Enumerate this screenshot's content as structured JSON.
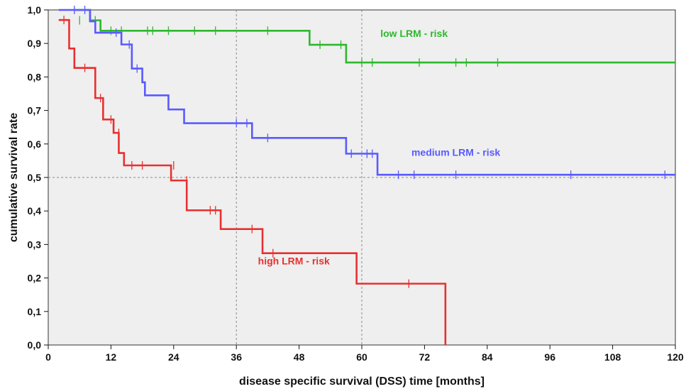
{
  "chart_data": {
    "type": "line",
    "subtype": "kaplan-meier step",
    "xlabel": "disease specific survival (DSS) time [months]",
    "ylabel": "cumulative survival rate",
    "xlim": [
      0,
      120
    ],
    "ylim": [
      0.0,
      1.0
    ],
    "x_ticks": [
      0,
      12,
      24,
      36,
      48,
      60,
      72,
      84,
      96,
      108,
      120
    ],
    "y_ticks": [
      0.0,
      0.1,
      0.2,
      0.3,
      0.4,
      0.5,
      0.6,
      0.7,
      0.8,
      0.9,
      1.0
    ],
    "x_tick_labels": [
      "0",
      "12",
      "24",
      "36",
      "48",
      "60",
      "72",
      "84",
      "96",
      "108",
      "120"
    ],
    "y_tick_labels": [
      "0,0",
      "0,1",
      "0,2",
      "0,3",
      "0,4",
      "0,5",
      "0,6",
      "0,7",
      "0,8",
      "0,9",
      "1,0"
    ],
    "reference_lines": {
      "x": [
        36,
        60
      ],
      "y": [
        0.5
      ],
      "style": "dashed"
    },
    "grid": false,
    "background": "#efefef",
    "series": [
      {
        "name": "low LRM - risk",
        "color": "#2eb82e",
        "steps": [
          [
            5,
            1.0
          ],
          [
            8,
            0.969
          ],
          [
            10,
            0.938
          ],
          [
            50,
            0.896
          ],
          [
            57,
            0.843
          ],
          [
            120,
            0.843
          ]
        ],
        "censored": [
          [
            6,
            0.969
          ],
          [
            9,
            0.969
          ],
          [
            12,
            0.938
          ],
          [
            14,
            0.938
          ],
          [
            19,
            0.938
          ],
          [
            20,
            0.938
          ],
          [
            23,
            0.938
          ],
          [
            28,
            0.938
          ],
          [
            32,
            0.938
          ],
          [
            42,
            0.938
          ],
          [
            52,
            0.896
          ],
          [
            56,
            0.896
          ],
          [
            60,
            0.843
          ],
          [
            62,
            0.843
          ],
          [
            71,
            0.843
          ],
          [
            78,
            0.843
          ],
          [
            80,
            0.843
          ],
          [
            86,
            0.843
          ]
        ]
      },
      {
        "name": "medium LRM - risk",
        "color": "#5a5aff",
        "steps": [
          [
            2,
            1.0
          ],
          [
            8,
            0.966
          ],
          [
            9,
            0.932
          ],
          [
            14,
            0.897
          ],
          [
            16,
            0.825
          ],
          [
            18,
            0.784
          ],
          [
            18.5,
            0.745
          ],
          [
            23,
            0.703
          ],
          [
            26,
            0.662
          ],
          [
            39,
            0.618
          ],
          [
            57,
            0.571
          ],
          [
            63,
            0.508
          ],
          [
            120,
            0.508
          ]
        ],
        "censored": [
          [
            5,
            1.0
          ],
          [
            7,
            1.0
          ],
          [
            13,
            0.932
          ],
          [
            15.5,
            0.897
          ],
          [
            17,
            0.825
          ],
          [
            36,
            0.662
          ],
          [
            38,
            0.662
          ],
          [
            42,
            0.618
          ],
          [
            58,
            0.571
          ],
          [
            61,
            0.571
          ],
          [
            62,
            0.571
          ],
          [
            67,
            0.508
          ],
          [
            70,
            0.508
          ],
          [
            78,
            0.508
          ],
          [
            100,
            0.508
          ],
          [
            118,
            0.508
          ]
        ]
      },
      {
        "name": "high LRM - risk",
        "color": "#e83030",
        "steps": [
          [
            2,
            0.97
          ],
          [
            4,
            0.885
          ],
          [
            5,
            0.827
          ],
          [
            9,
            0.737
          ],
          [
            10.5,
            0.673
          ],
          [
            12.5,
            0.633
          ],
          [
            13.5,
            0.573
          ],
          [
            14.5,
            0.536
          ],
          [
            23.5,
            0.491
          ],
          [
            26.5,
            0.402
          ],
          [
            33,
            0.346
          ],
          [
            41,
            0.274
          ],
          [
            59,
            0.183
          ],
          [
            76,
            0.0
          ]
        ],
        "censored": [
          [
            3,
            0.97
          ],
          [
            7,
            0.827
          ],
          [
            10,
            0.737
          ],
          [
            12,
            0.673
          ],
          [
            13.5,
            0.633
          ],
          [
            16,
            0.536
          ],
          [
            18,
            0.536
          ],
          [
            24,
            0.536
          ],
          [
            26.5,
            0.491
          ],
          [
            31,
            0.402
          ],
          [
            32,
            0.402
          ],
          [
            39,
            0.346
          ],
          [
            43,
            0.274
          ],
          [
            69,
            0.183
          ]
        ]
      }
    ],
    "annotations": [
      {
        "text": "low LRM - risk",
        "series": 0,
        "x": 70,
        "y": 0.92
      },
      {
        "text": "medium LRM - risk",
        "series": 1,
        "x": 78,
        "y": 0.565
      },
      {
        "text": "high LRM - risk",
        "series": 2,
        "x": 47,
        "y": 0.24
      }
    ]
  }
}
